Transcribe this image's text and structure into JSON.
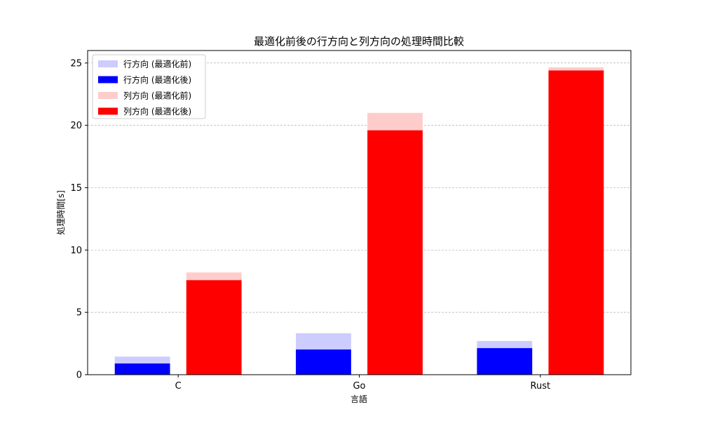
{
  "chart_data": {
    "type": "bar",
    "title": "最適化前後の行方向と列方向の処理時間比較",
    "xlabel": "言語",
    "ylabel": "処理時間[s]",
    "categories": [
      "C",
      "Go",
      "Rust"
    ],
    "ylim": [
      0,
      26
    ],
    "yticks": [
      0,
      5,
      10,
      15,
      20,
      25
    ],
    "grid": "y-dashed",
    "legend_position": "top-left",
    "series": [
      {
        "name": "行方向 (最適化前)",
        "group": "row",
        "layer": "back",
        "color": "#ccccff",
        "values": [
          1.45,
          3.32,
          2.7
        ]
      },
      {
        "name": "行方向 (最適化後)",
        "group": "row",
        "layer": "front",
        "color": "#0000ff",
        "values": [
          0.9,
          2.02,
          2.13
        ]
      },
      {
        "name": "列方向 (最適化前)",
        "group": "col",
        "layer": "back",
        "color": "#ffcccc",
        "values": [
          8.2,
          21.0,
          24.65
        ]
      },
      {
        "name": "列方向 (最適化後)",
        "group": "col",
        "layer": "front",
        "color": "#ff0000",
        "values": [
          7.58,
          19.6,
          24.4
        ]
      }
    ]
  }
}
